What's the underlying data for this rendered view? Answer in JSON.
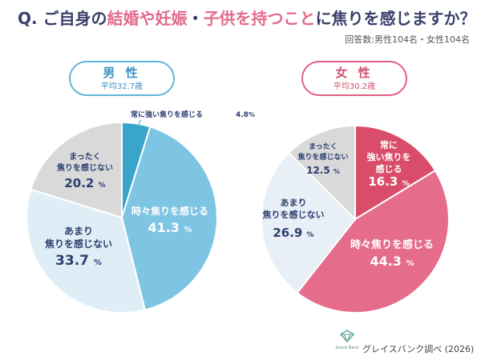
{
  "title": {
    "before": "Q. ご自身の",
    "highlight1": "結婚や妊娠",
    "middle": "・",
    "highlight2": "子供を持つこと",
    "after": "に焦りを感じますか？"
  },
  "respondents": "回答数:男性104名・女性104名",
  "colors": {
    "male_dark": "#3aa5cb",
    "male_main": "#7ec5e4",
    "male_light": "#dfeef6",
    "neutral_gray": "#d9d9d9",
    "female_dark": "#d94d6a",
    "female_main": "#e66c8c",
    "female_light": "#e8eff6"
  },
  "male": {
    "label": "男 性",
    "average": "平均32.7歳"
  },
  "female": {
    "label": "女 性",
    "average": "平均30.2歳"
  },
  "footer": "グレイスバンク調べ (2026)",
  "logo_text": "Grace Bank",
  "chart_data": [
    {
      "type": "pie",
      "title": "男 性",
      "categories": [
        "常に強い焦りを感じる",
        "時々焦りを感じる",
        "あまり焦りを感じない",
        "まったく焦りを感じない"
      ],
      "values": [
        4.8,
        41.3,
        33.7,
        20.2
      ],
      "unit": "%"
    },
    {
      "type": "pie",
      "title": "女 性",
      "categories": [
        "常に強い焦りを感じる",
        "時々焦りを感じる",
        "あまり焦りを感じない",
        "まったく焦りを感じない"
      ],
      "values": [
        16.3,
        44.3,
        26.9,
        12.5
      ],
      "unit": "%"
    }
  ]
}
